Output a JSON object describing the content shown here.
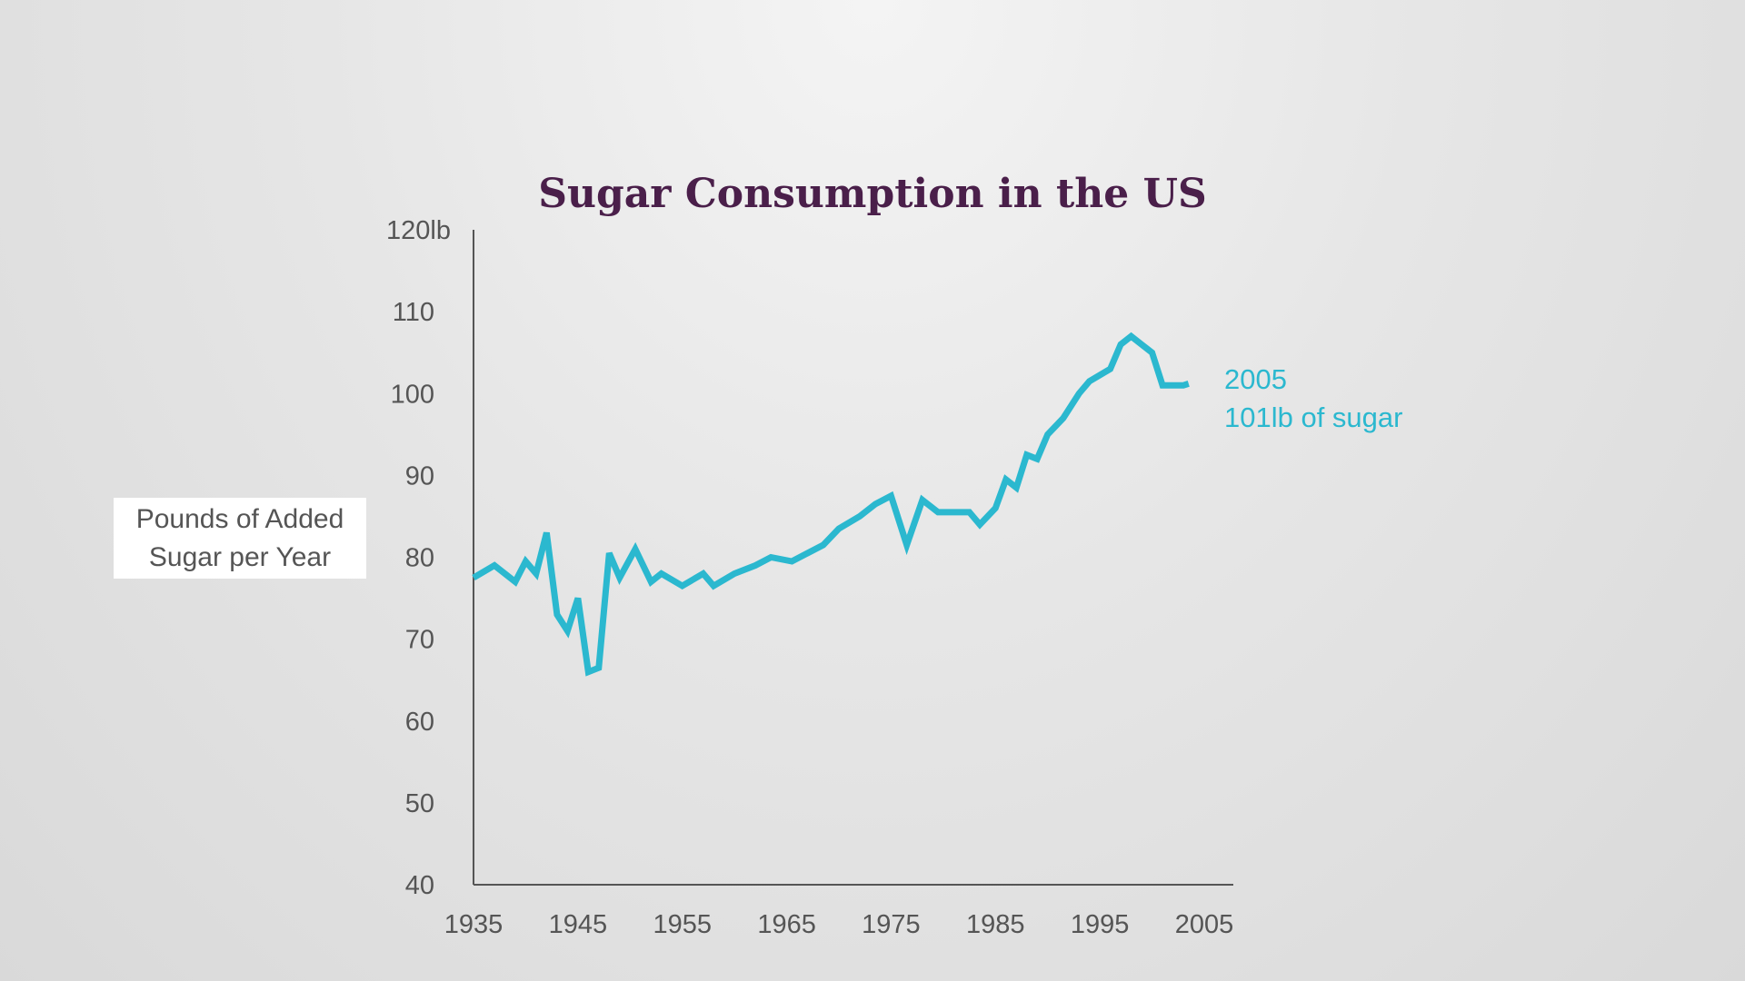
{
  "chart_data": {
    "type": "line",
    "title": "Sugar Consumption in the US",
    "ylabel_lines": [
      "Pounds of Added",
      "Sugar per Year"
    ],
    "xlabel": "",
    "ylim": [
      40,
      120
    ],
    "xlim": [
      1935,
      2005
    ],
    "y_ticks": [
      {
        "value": 40,
        "label": "40"
      },
      {
        "value": 50,
        "label": "50"
      },
      {
        "value": 60,
        "label": "60"
      },
      {
        "value": 70,
        "label": "70"
      },
      {
        "value": 80,
        "label": "80"
      },
      {
        "value": 90,
        "label": "90"
      },
      {
        "value": 100,
        "label": "100"
      },
      {
        "value": 110,
        "label": "110"
      },
      {
        "value": 120,
        "label": "120lb"
      }
    ],
    "x_ticks": [
      {
        "value": 1935,
        "label": "1935"
      },
      {
        "value": 1945,
        "label": "1945"
      },
      {
        "value": 1955,
        "label": "1955"
      },
      {
        "value": 1965,
        "label": "1965"
      },
      {
        "value": 1975,
        "label": "1975"
      },
      {
        "value": 1985,
        "label": "1985"
      },
      {
        "value": 1995,
        "label": "1995"
      },
      {
        "value": 2005,
        "label": "2005"
      }
    ],
    "grid": false,
    "series": [
      {
        "color": "#2bb8cf",
        "points": [
          [
            1935,
            77.5
          ],
          [
            1937,
            79
          ],
          [
            1939,
            77
          ],
          [
            1940,
            79.5
          ],
          [
            1941,
            78
          ],
          [
            1942,
            83
          ],
          [
            1943,
            73
          ],
          [
            1944,
            71
          ],
          [
            1945,
            75
          ],
          [
            1946,
            66
          ],
          [
            1947,
            66.5
          ],
          [
            1948,
            80.5
          ],
          [
            1949,
            77.5
          ],
          [
            1950.5,
            81
          ],
          [
            1952,
            77
          ],
          [
            1953,
            78
          ],
          [
            1955,
            76.5
          ],
          [
            1957,
            78
          ],
          [
            1958,
            76.5
          ],
          [
            1960,
            78
          ],
          [
            1962,
            79
          ],
          [
            1963.5,
            80
          ],
          [
            1965.5,
            79.5
          ],
          [
            1967,
            80.5
          ],
          [
            1968.5,
            81.5
          ],
          [
            1970,
            83.5
          ],
          [
            1972,
            85
          ],
          [
            1973.5,
            86.5
          ],
          [
            1975,
            87.5
          ],
          [
            1976.5,
            81.5
          ],
          [
            1978,
            87
          ],
          [
            1979.5,
            85.5
          ],
          [
            1981,
            85.5
          ],
          [
            1982.5,
            85.5
          ],
          [
            1983.5,
            84
          ],
          [
            1985,
            86
          ],
          [
            1986,
            89.5
          ],
          [
            1987,
            88.5
          ],
          [
            1988,
            92.5
          ],
          [
            1989,
            92
          ],
          [
            1990,
            95
          ],
          [
            1991.5,
            97
          ],
          [
            1993,
            100
          ],
          [
            1994,
            101.5
          ],
          [
            1996,
            103
          ],
          [
            1997,
            106
          ],
          [
            1998,
            107
          ],
          [
            1999,
            106
          ],
          [
            2000,
            105
          ],
          [
            2001,
            101
          ],
          [
            2003,
            101
          ],
          [
            2003.5,
            101.2
          ]
        ]
      }
    ],
    "annotation": {
      "lines": [
        "2005",
        "101lb of sugar"
      ]
    }
  }
}
